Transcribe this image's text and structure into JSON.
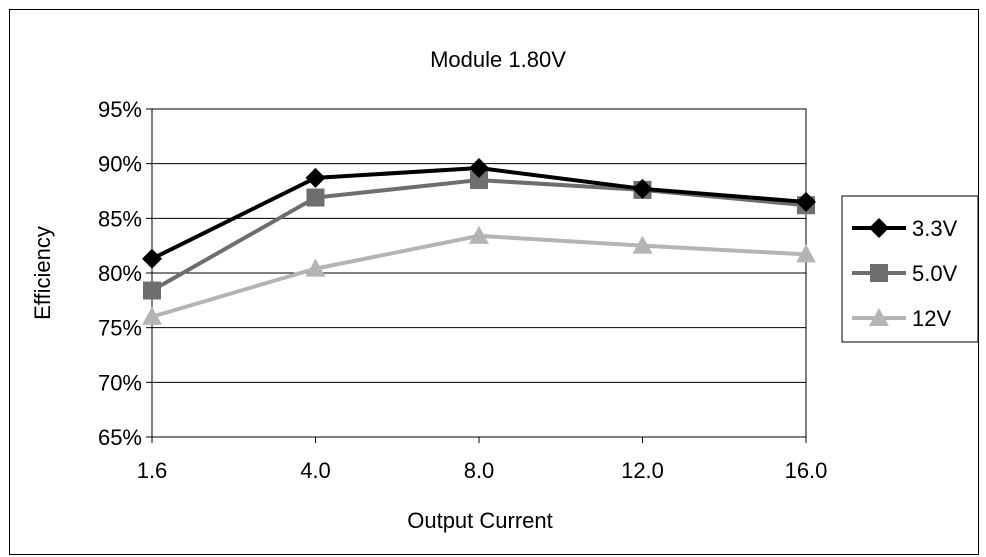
{
  "chart_data": {
    "type": "line",
    "title": "Module 1.80V",
    "xlabel": "Output Current",
    "ylabel": "Efficiency",
    "categories": [
      "1.6",
      "4.0",
      "8.0",
      "12.0",
      "16.0"
    ],
    "y_ticks": [
      "65%",
      "70%",
      "75%",
      "80%",
      "85%",
      "90%",
      "95%"
    ],
    "ylim": [
      65,
      95
    ],
    "grid": true,
    "legend_position": "right",
    "series": [
      {
        "name": "3.3V",
        "marker": "diamond",
        "color": "#000000",
        "values": [
          81.3,
          88.7,
          89.6,
          87.7,
          86.5
        ]
      },
      {
        "name": "5.0V",
        "marker": "square",
        "color": "#6e6e6e",
        "values": [
          78.4,
          86.9,
          88.5,
          87.6,
          86.2
        ]
      },
      {
        "name": "12V",
        "marker": "triangle",
        "color": "#b4b4b4",
        "values": [
          76.0,
          80.4,
          83.4,
          82.5,
          81.7
        ]
      }
    ]
  }
}
